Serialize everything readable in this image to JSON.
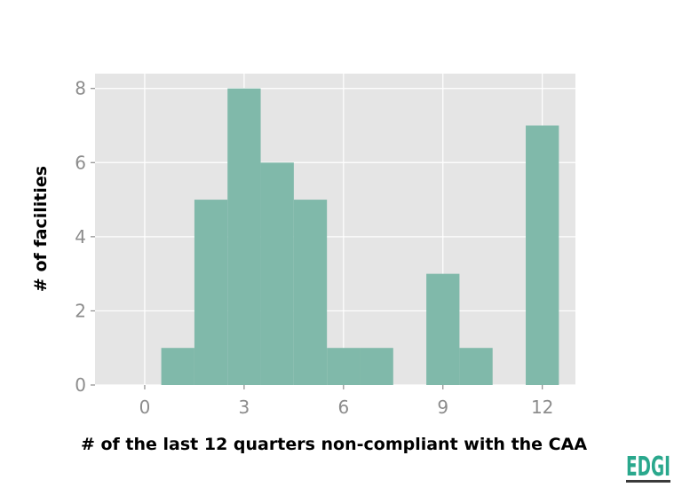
{
  "chart_data": {
    "type": "bar",
    "title": "",
    "xlabel": "# of the last 12 quarters non-compliant with the CAA",
    "ylabel": "# of facilities",
    "x": [
      0,
      1,
      2,
      3,
      4,
      5,
      6,
      7,
      8,
      9,
      10,
      11,
      12
    ],
    "values": [
      0,
      1,
      5,
      8,
      6,
      5,
      1,
      1,
      0,
      3,
      1,
      0,
      7
    ],
    "xticks": [
      "0",
      "3",
      "6",
      "9",
      "12"
    ],
    "yticks": [
      "0",
      "2",
      "4",
      "6",
      "8"
    ],
    "xlim": [
      -1.5,
      13.0
    ],
    "ylim": [
      0,
      8.4
    ],
    "grid": true,
    "bar_color": "#80b9aa",
    "background_color": "#e5e5e5"
  },
  "logo": {
    "text": "EDGI",
    "color": "#2aa88d"
  }
}
